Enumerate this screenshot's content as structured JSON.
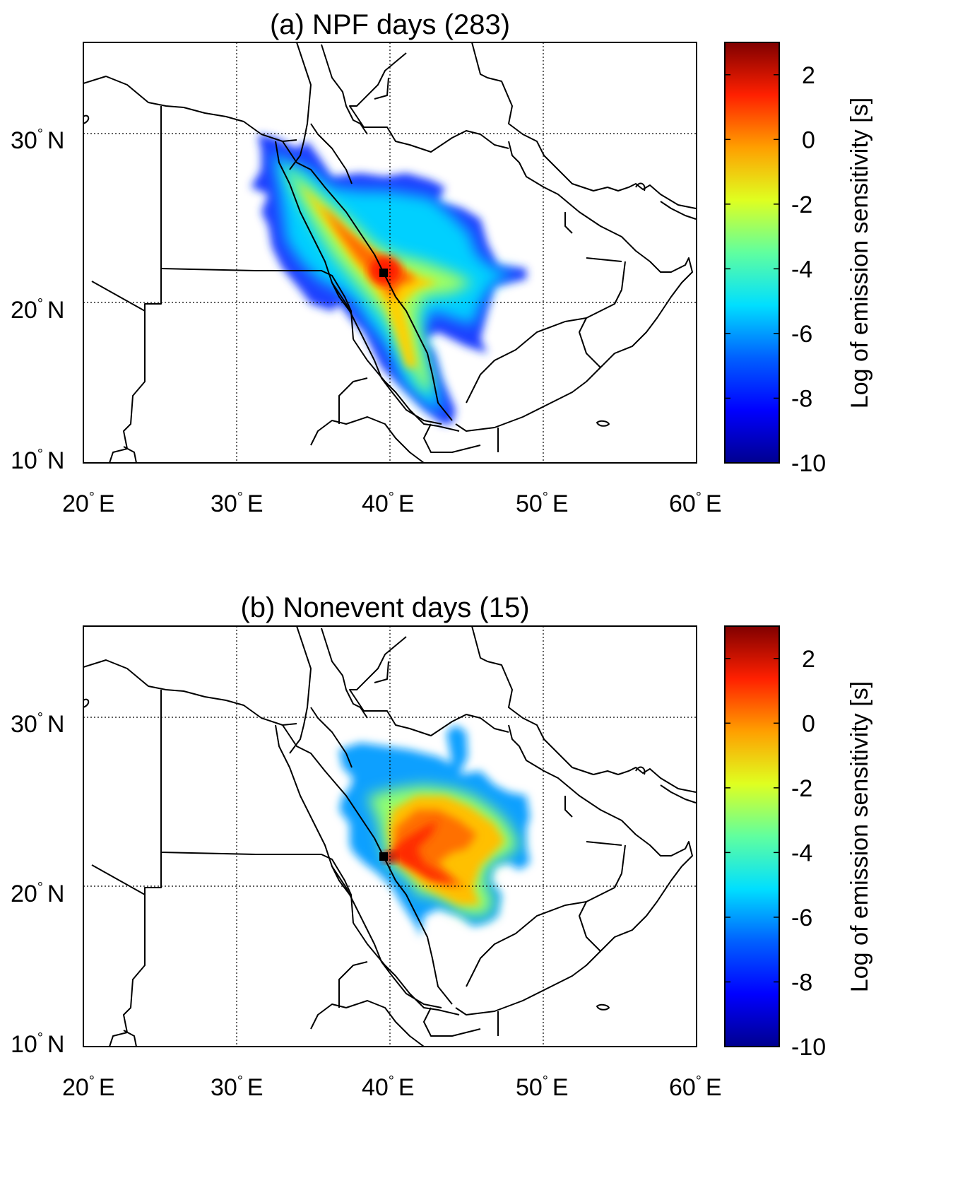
{
  "colors": {
    "jet": [
      "#00008f",
      "#0000ff",
      "#0080ff",
      "#00ffff",
      "#80ff80",
      "#ffff00",
      "#ff8000",
      "#ff0000",
      "#800000"
    ],
    "site_marker": "#000000"
  },
  "colorbar": {
    "label": "Log of emission sensitivity [s]",
    "range": [
      -10,
      3
    ],
    "ticks": [
      "2",
      "0",
      "-2",
      "-4",
      "-6",
      "-8",
      "-10"
    ]
  },
  "panels": [
    {
      "id": "a",
      "title": "(a) NPF days (283)",
      "x_ticks": [
        {
          "num": "20",
          "suf": "E"
        },
        {
          "num": "30",
          "suf": "E"
        },
        {
          "num": "40",
          "suf": "E"
        },
        {
          "num": "50",
          "suf": "E"
        },
        {
          "num": "60",
          "suf": "E"
        }
      ],
      "y_ticks": [
        {
          "num": "30",
          "suf": "N"
        },
        {
          "num": "20",
          "suf": "N"
        },
        {
          "num": "10",
          "suf": "N"
        }
      ],
      "site": {
        "lon": 39.7,
        "lat": 22.0
      }
    },
    {
      "id": "b",
      "title": "(b) Nonevent days (15)",
      "x_ticks": [
        {
          "num": "20",
          "suf": "E"
        },
        {
          "num": "30",
          "suf": "E"
        },
        {
          "num": "40",
          "suf": "E"
        },
        {
          "num": "50",
          "suf": "E"
        },
        {
          "num": "60",
          "suf": "E"
        }
      ],
      "y_ticks": [
        {
          "num": "30",
          "suf": "N"
        },
        {
          "num": "20",
          "suf": "N"
        },
        {
          "num": "10",
          "suf": "N"
        }
      ],
      "site": {
        "lon": 39.7,
        "lat": 22.0
      }
    }
  ],
  "map": {
    "lon_range": [
      20,
      60
    ],
    "lat_range": [
      10,
      35
    ],
    "grid_lon": [
      30,
      40,
      50
    ],
    "grid_lat": [
      20,
      30
    ]
  }
}
